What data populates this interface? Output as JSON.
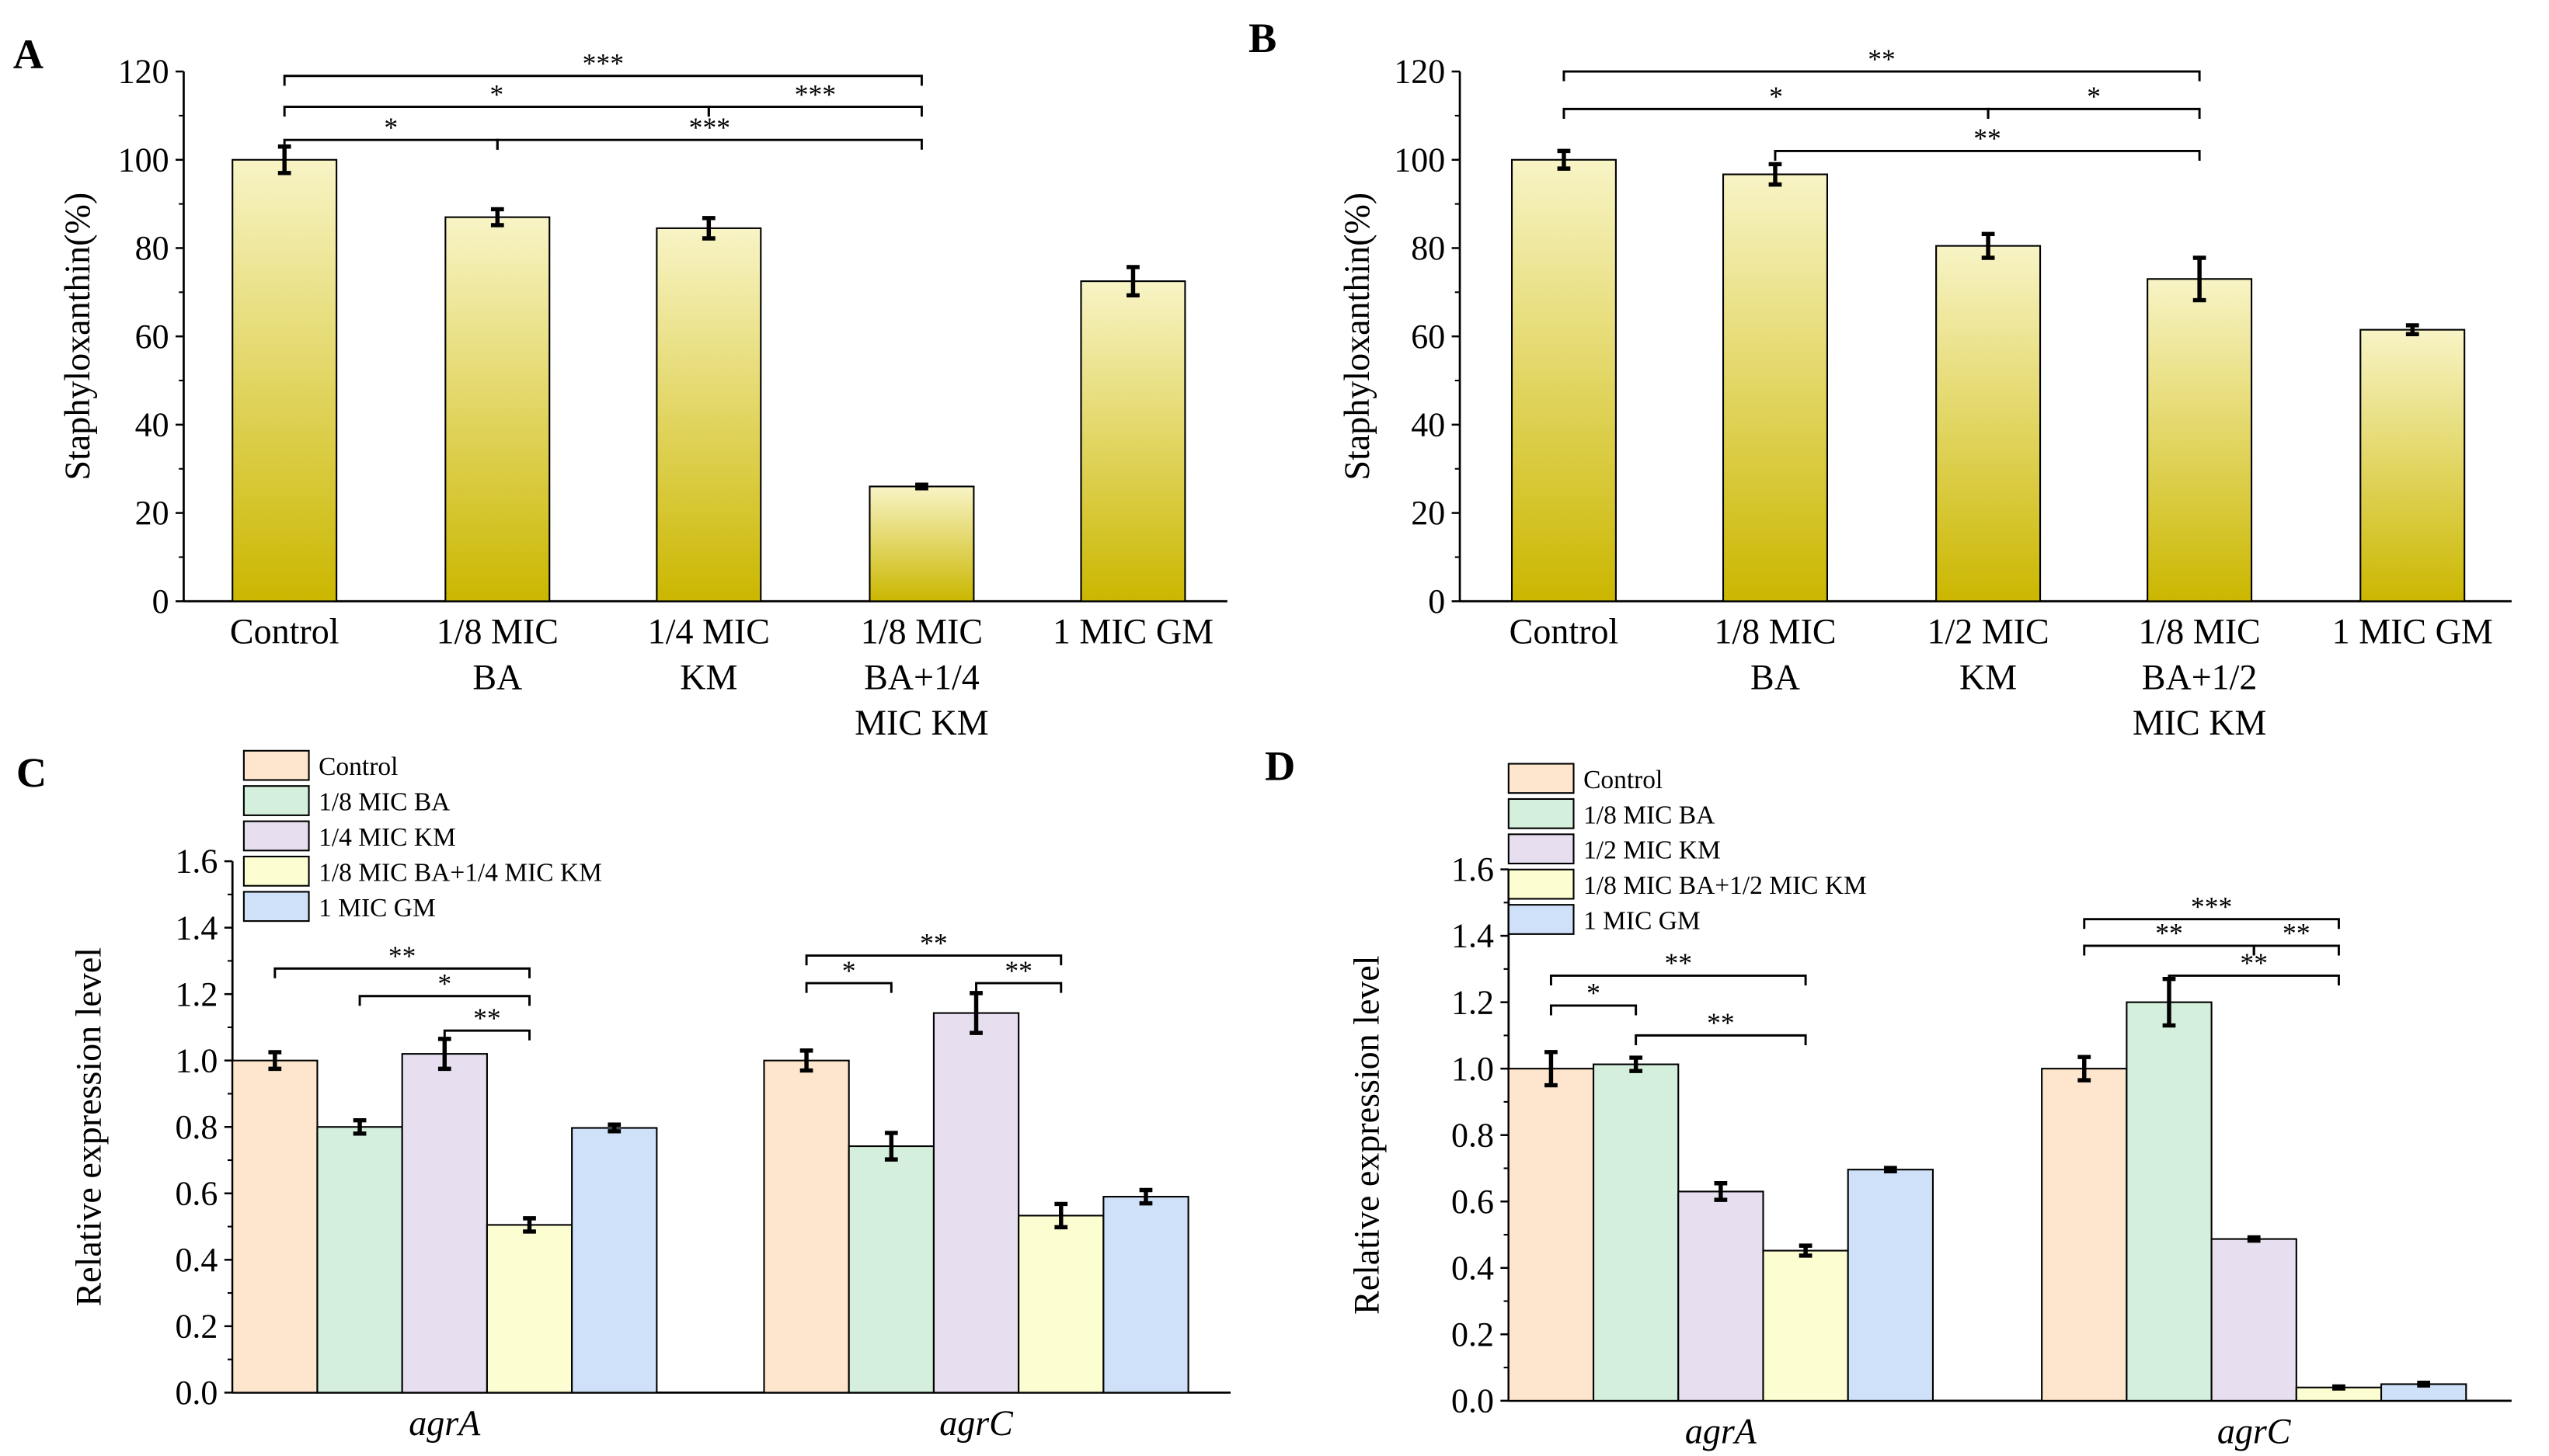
{
  "chart_data": [
    {
      "panel": "A",
      "type": "bar",
      "ylabel": "Staphyloxanthin(%)",
      "xlabel": "",
      "ylim": [
        0,
        120
      ],
      "yticks": [
        0,
        20,
        40,
        60,
        80,
        100,
        120
      ],
      "categories": [
        [
          "Control"
        ],
        [
          "1/8 MIC",
          "BA"
        ],
        [
          "1/4 MIC",
          "KM"
        ],
        [
          "1/8 MIC",
          "BA+1/4",
          "MIC KM"
        ],
        [
          "1 MIC GM"
        ]
      ],
      "values": [
        100,
        87,
        84.5,
        26,
        72.5
      ],
      "errors": [
        3,
        1.8,
        2.3,
        0.4,
        3.2
      ],
      "significance": [
        {
          "from": 0,
          "to": 3,
          "label": "***",
          "level": 119
        },
        {
          "from": 0,
          "to": 2,
          "label": "*",
          "level": 112
        },
        {
          "from": 2,
          "to": 3,
          "label": "***",
          "level": 112
        },
        {
          "from": 0,
          "to": 1,
          "label": "*",
          "level": 104.5
        },
        {
          "from": 1,
          "to": 3,
          "label": "***",
          "level": 104.5
        }
      ]
    },
    {
      "panel": "B",
      "type": "bar",
      "ylabel": "Staphyloxanthin(%)",
      "xlabel": "",
      "ylim": [
        0,
        120
      ],
      "yticks": [
        0,
        20,
        40,
        60,
        80,
        100,
        120
      ],
      "categories": [
        [
          "Control"
        ],
        [
          "1/8 MIC",
          "BA"
        ],
        [
          "1/2 MIC",
          "KM"
        ],
        [
          "1/8 MIC",
          "BA+1/2",
          "MIC KM"
        ],
        [
          "1 MIC GM"
        ]
      ],
      "values": [
        100,
        96.7,
        80.5,
        73,
        61.5
      ],
      "errors": [
        2,
        2.3,
        2.7,
        4.8,
        1
      ],
      "significance": [
        {
          "from": 0,
          "to": 3,
          "label": "**",
          "level": 120
        },
        {
          "from": 0,
          "to": 2,
          "label": "*",
          "level": 111.5
        },
        {
          "from": 2,
          "to": 3,
          "label": "*",
          "level": 111.5
        },
        {
          "from": 1,
          "to": 3,
          "label": "**",
          "level": 102
        }
      ]
    },
    {
      "panel": "C",
      "type": "grouped-bar",
      "ylabel": "Relative expression level",
      "xlabel": "",
      "ylim": [
        0,
        1.6
      ],
      "yticks": [
        "0.0",
        "0.2",
        "0.4",
        "0.6",
        "0.8",
        "1.0",
        "1.2",
        "1.4",
        "1.6"
      ],
      "categories": [
        "agrA",
        "agrC"
      ],
      "legend": [
        "Control",
        "1/8 MIC BA",
        "1/4 MIC KM",
        "1/8 MIC BA+1/4 MIC KM",
        "1 MIC GM"
      ],
      "legend_position": "top-left",
      "series_values": [
        [
          1.0,
          0.8,
          1.02,
          0.505,
          0.797
        ],
        [
          1.0,
          0.742,
          1.143,
          0.533,
          0.59
        ]
      ],
      "series_errors": [
        [
          0.025,
          0.02,
          0.045,
          0.02,
          0.01
        ],
        [
          0.03,
          0.04,
          0.06,
          0.035,
          0.02
        ]
      ],
      "significance": [
        [
          {
            "from": 0,
            "to": 3,
            "label": "**",
            "level": 1.277
          },
          {
            "from": 1,
            "to": 3,
            "label": "*",
            "level": 1.194
          },
          {
            "from": 2,
            "to": 3,
            "label": "**",
            "level": 1.09
          }
        ],
        [
          {
            "from": 0,
            "to": 3,
            "label": "**",
            "level": 1.316
          },
          {
            "from": 0,
            "to": 1,
            "label": "*",
            "level": 1.233
          },
          {
            "from": 2,
            "to": 3,
            "label": "**",
            "level": 1.233
          }
        ]
      ]
    },
    {
      "panel": "D",
      "type": "grouped-bar",
      "ylabel": "Relative expression level",
      "xlabel": "",
      "ylim": [
        0,
        1.6
      ],
      "yticks": [
        "0.0",
        "0.2",
        "0.4",
        "0.6",
        "0.8",
        "1.0",
        "1.2",
        "1.4",
        "1.6"
      ],
      "categories": [
        "agrA",
        "agrC"
      ],
      "legend": [
        "Control",
        "1/8 MIC BA",
        "1/2 MIC KM",
        "1/8 MIC BA+1/2 MIC KM",
        "1 MIC GM"
      ],
      "legend_position": "top-left",
      "series_values": [
        [
          1.0,
          1.013,
          0.63,
          0.452,
          0.696
        ],
        [
          1.0,
          1.2,
          0.487,
          0.04,
          0.05
        ]
      ],
      "series_errors": [
        [
          0.05,
          0.02,
          0.025,
          0.015,
          0.005
        ],
        [
          0.035,
          0.07,
          0.005,
          0.003,
          0.004
        ]
      ],
      "significance": [
        [
          {
            "from": 0,
            "to": 3,
            "label": "**",
            "level": 1.28
          },
          {
            "from": 0,
            "to": 1,
            "label": "*",
            "level": 1.19
          },
          {
            "from": 1,
            "to": 3,
            "label": "**",
            "level": 1.1
          }
        ],
        [
          {
            "from": 0,
            "to": 3,
            "label": "***",
            "level": 1.45
          },
          {
            "from": 0,
            "to": 2,
            "label": "**",
            "level": 1.37
          },
          {
            "from": 2,
            "to": 3,
            "label": "**",
            "level": 1.37
          },
          {
            "from": 1,
            "to": 3,
            "label": "**",
            "level": 1.28
          }
        ]
      ]
    }
  ],
  "colors": {
    "gradient_top": "#f8f4c6",
    "gradient_bottom": "#cbb700",
    "series": [
      "#fde6cd",
      "#d4f0dc",
      "#e7dff0",
      "#fdfdd2",
      "#cfe1f8"
    ]
  }
}
